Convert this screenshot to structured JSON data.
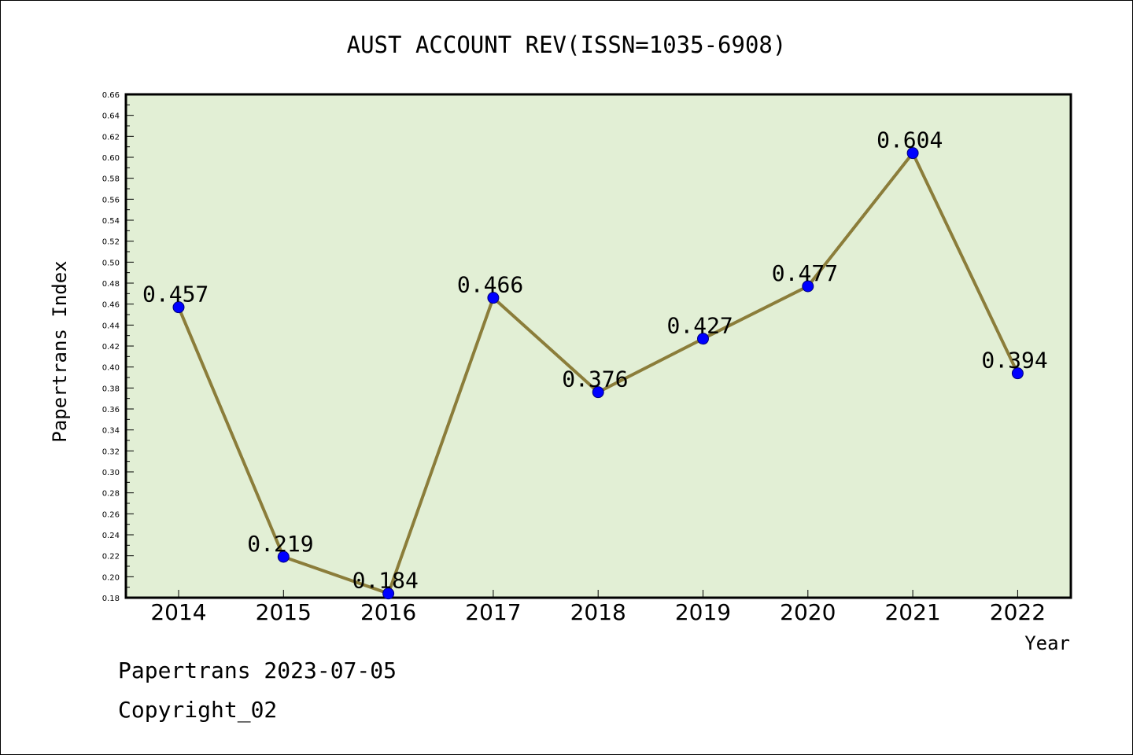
{
  "chart_data": {
    "type": "line",
    "title": "AUST ACCOUNT REV(ISSN=1035-6908)",
    "xlabel": "Year",
    "ylabel": "Papertrans Index",
    "categories": [
      "2014",
      "2015",
      "2016",
      "2017",
      "2018",
      "2019",
      "2020",
      "2021",
      "2022"
    ],
    "values": [
      0.457,
      0.219,
      0.184,
      0.466,
      0.376,
      0.427,
      0.477,
      0.604,
      0.394
    ],
    "data_labels": [
      "0.457",
      "0.219",
      "0.184",
      "0.466",
      "0.376",
      "0.427",
      "0.477",
      "0.604",
      "0.394"
    ],
    "ylim": [
      0.18,
      0.66
    ],
    "ytick_labels": [
      "0.18",
      "0.20",
      "0.22",
      "0.24",
      "0.26",
      "0.28",
      "0.30",
      "0.32",
      "0.34",
      "0.36",
      "0.38",
      "0.40",
      "0.42",
      "0.44",
      "0.46",
      "0.48",
      "0.50",
      "0.52",
      "0.54",
      "0.56",
      "0.58",
      "0.60",
      "0.62",
      "0.64",
      "0.66"
    ],
    "grid": false,
    "colors": {
      "plot_background": "#e2efd5",
      "line": "#8b7d3a",
      "marker": "#0000ff"
    }
  },
  "footer": {
    "line1": "Papertrans 2023-07-05",
    "line2": "Copyright_02"
  }
}
